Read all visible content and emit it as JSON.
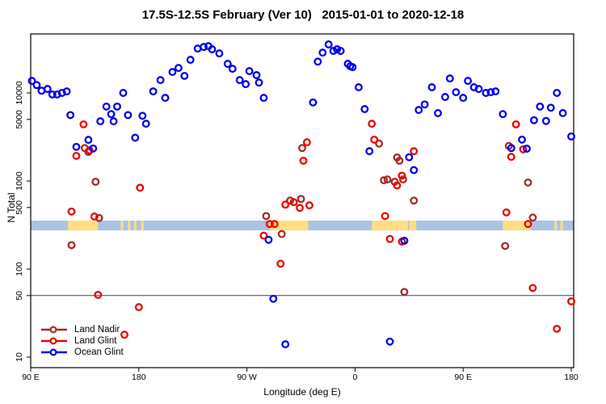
{
  "title": "17.5S-12.5S February (Ver 10)   2015-01-01 to 2020-12-18",
  "chart_data": {
    "type": "scatter",
    "title": "17.5S-12.5S February (Ver 10)   2015-01-01 to 2020-12-18",
    "xlabel": "Longitude (deg E)",
    "ylabel": "N Total",
    "x_axis": {
      "range_deg_continuous": [
        90,
        540
      ],
      "note": "longitude axis starts at 90E and wraps eastward through 180, 90W, 0, 90E to 180",
      "ticks": [
        {
          "value": 90,
          "label": "90 E"
        },
        {
          "value": 180,
          "label": "180"
        },
        {
          "value": 270,
          "label": "90 W"
        },
        {
          "value": 360,
          "label": "0"
        },
        {
          "value": 450,
          "label": "90 E"
        },
        {
          "value": 540,
          "label": "180"
        }
      ]
    },
    "y_axis": {
      "scale": "log10",
      "range": [
        9,
        45000
      ],
      "ticks": [
        10,
        50,
        100,
        500,
        1000,
        5000,
        10000
      ]
    },
    "reference_line_y": 50,
    "surface_band": {
      "n_range": [
        275,
        355
      ],
      "ocean_color": "#AAC3E3",
      "land_color": "#FFDD80",
      "land_patches_deg": [
        [
          121,
          146
        ],
        [
          165,
          167
        ],
        [
          171,
          173
        ],
        [
          176,
          178
        ],
        [
          182,
          184
        ],
        [
          289,
          321
        ],
        [
          374,
          404
        ],
        [
          405,
          411
        ],
        [
          483,
          506
        ],
        [
          526,
          528
        ],
        [
          531,
          533
        ]
      ]
    },
    "legend_position": "bottom-left",
    "series": [
      {
        "name": "Land Nadir",
        "color": "#A52A2A",
        "points": [
          [
            135,
            2370
          ],
          [
            138,
            2140
          ],
          [
            144,
            980
          ],
          [
            147,
            380
          ],
          [
            124,
            187
          ],
          [
            286,
            400
          ],
          [
            299,
            250
          ],
          [
            306,
            600
          ],
          [
            315,
            625
          ],
          [
            316,
            2370
          ],
          [
            380,
            2660
          ],
          [
            384,
            1020
          ],
          [
            387,
            1040
          ],
          [
            393,
            980
          ],
          [
            395,
            1850
          ],
          [
            397,
            1700
          ],
          [
            400,
            1040
          ],
          [
            409,
            600
          ],
          [
            401,
            55
          ],
          [
            485,
            183
          ],
          [
            488,
            2500
          ],
          [
            504,
            960
          ],
          [
            508,
            385
          ]
        ]
      },
      {
        "name": "Land Glint",
        "color": "#EE0000",
        "points": [
          [
            134,
            4400
          ],
          [
            124,
            450
          ],
          [
            143,
            395
          ],
          [
            128,
            1930
          ],
          [
            139,
            2230
          ],
          [
            146,
            51
          ],
          [
            168,
            18
          ],
          [
            180,
            37
          ],
          [
            181,
            840
          ],
          [
            284,
            240
          ],
          [
            289,
            325
          ],
          [
            293,
            325
          ],
          [
            298,
            115
          ],
          [
            302,
            540
          ],
          [
            309,
            575
          ],
          [
            314,
            495
          ],
          [
            317,
            1700
          ],
          [
            320,
            2750
          ],
          [
            322,
            530
          ],
          [
            374,
            4470
          ],
          [
            376,
            2950
          ],
          [
            385,
            400
          ],
          [
            389,
            220
          ],
          [
            395,
            890
          ],
          [
            399,
            205
          ],
          [
            399,
            1150
          ],
          [
            409,
            2180
          ],
          [
            486,
            440
          ],
          [
            490,
            1880
          ],
          [
            494,
            4400
          ],
          [
            500,
            2290
          ],
          [
            504,
            325
          ],
          [
            508,
            61
          ],
          [
            528,
            21
          ],
          [
            540,
            43
          ]
        ]
      },
      {
        "name": "Ocean Glint",
        "color": "#0000EE",
        "points": [
          [
            91,
            13700
          ],
          [
            95,
            12300
          ],
          [
            99,
            10600
          ],
          [
            104,
            11100
          ],
          [
            108,
            9600
          ],
          [
            112,
            9600
          ],
          [
            116,
            10000
          ],
          [
            120,
            10400
          ],
          [
            123,
            5600
          ],
          [
            128,
            2440
          ],
          [
            138,
            2930
          ],
          [
            142,
            2340
          ],
          [
            148,
            4760
          ],
          [
            153,
            7000
          ],
          [
            157,
            5750
          ],
          [
            159,
            4760
          ],
          [
            162,
            7000
          ],
          [
            167,
            10000
          ],
          [
            171,
            5600
          ],
          [
            177,
            3100
          ],
          [
            183,
            5500
          ],
          [
            186,
            4470
          ],
          [
            192,
            10400
          ],
          [
            198,
            14000
          ],
          [
            202,
            8800
          ],
          [
            208,
            17300
          ],
          [
            213,
            19200
          ],
          [
            218,
            15600
          ],
          [
            223,
            23800
          ],
          [
            229,
            31900
          ],
          [
            234,
            33300
          ],
          [
            238,
            34000
          ],
          [
            241,
            31300
          ],
          [
            247,
            28100
          ],
          [
            254,
            21400
          ],
          [
            258,
            18800
          ],
          [
            264,
            14000
          ],
          [
            269,
            12600
          ],
          [
            272,
            17700
          ],
          [
            278,
            15900
          ],
          [
            280,
            13100
          ],
          [
            284,
            8800
          ],
          [
            288,
            215
          ],
          [
            292,
            46
          ],
          [
            302,
            14
          ],
          [
            325,
            7800
          ],
          [
            329,
            22700
          ],
          [
            333,
            28700
          ],
          [
            338,
            35500
          ],
          [
            342,
            30000
          ],
          [
            345,
            31300
          ],
          [
            348,
            30000
          ],
          [
            354,
            21400
          ],
          [
            356,
            20100
          ],
          [
            358,
            19600
          ],
          [
            363,
            11600
          ],
          [
            368,
            6550
          ],
          [
            372,
            2180
          ],
          [
            389,
            15
          ],
          [
            401,
            210
          ],
          [
            405,
            1860
          ],
          [
            409,
            1330
          ],
          [
            413,
            6400
          ],
          [
            418,
            7400
          ],
          [
            424,
            11600
          ],
          [
            429,
            5900
          ],
          [
            435,
            9000
          ],
          [
            439,
            14600
          ],
          [
            444,
            10200
          ],
          [
            450,
            8800
          ],
          [
            454,
            13700
          ],
          [
            459,
            11600
          ],
          [
            463,
            11100
          ],
          [
            469,
            10000
          ],
          [
            473,
            10200
          ],
          [
            477,
            10400
          ],
          [
            483,
            5750
          ],
          [
            490,
            2370
          ],
          [
            499,
            2950
          ],
          [
            503,
            2330
          ],
          [
            509,
            4900
          ],
          [
            514,
            7000
          ],
          [
            519,
            4800
          ],
          [
            523,
            6800
          ],
          [
            528,
            10000
          ],
          [
            533,
            5900
          ],
          [
            540,
            3200
          ]
        ]
      }
    ]
  }
}
